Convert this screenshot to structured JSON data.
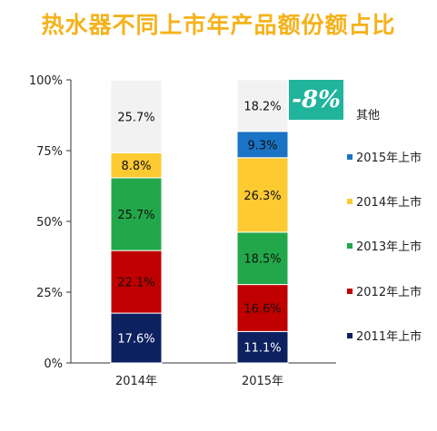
{
  "title": "热水器不同上市年产品额份额占比",
  "change_badge": "-8%",
  "colors": {
    "title": "#f5b21b",
    "badge_bg": "#20b49c"
  },
  "chart_data": {
    "type": "bar",
    "stacked": true,
    "normalized": true,
    "categories": [
      "2014年",
      "2015年"
    ],
    "ylim": [
      0,
      100
    ],
    "yticks": [
      "0%",
      "25%",
      "50%",
      "75%",
      "100%"
    ],
    "grid": false,
    "legend_position": "right",
    "series": [
      {
        "name": "2011年上市",
        "values": [
          17.6,
          11.1
        ],
        "labels": [
          "17.6%",
          "11.1%"
        ],
        "color": "#0d2060",
        "label_color": "#ffffff"
      },
      {
        "name": "2012年上市",
        "values": [
          22.1,
          16.6
        ],
        "labels": [
          "22.1%",
          "16.6%"
        ],
        "color": "#c00000",
        "label_color": "#111111"
      },
      {
        "name": "2013年上市",
        "values": [
          25.7,
          18.5
        ],
        "labels": [
          "25.7%",
          "18.5%"
        ],
        "color": "#22a84a",
        "label_color": "#111111"
      },
      {
        "name": "2014年上市",
        "values": [
          8.8,
          26.3
        ],
        "labels": [
          "8.8%",
          "26.3%"
        ],
        "color": "#fdca32",
        "label_color": "#111111"
      },
      {
        "name": "2015年上市",
        "values": [
          0,
          9.3
        ],
        "labels": [
          "",
          "9.3%"
        ],
        "color": "#1a73c4",
        "label_color": "#111111"
      },
      {
        "name": "其他",
        "values": [
          25.7,
          18.2
        ],
        "labels": [
          "25.7%",
          "18.2%"
        ],
        "color": "#f2f2f2",
        "label_color": "#111111"
      }
    ]
  }
}
